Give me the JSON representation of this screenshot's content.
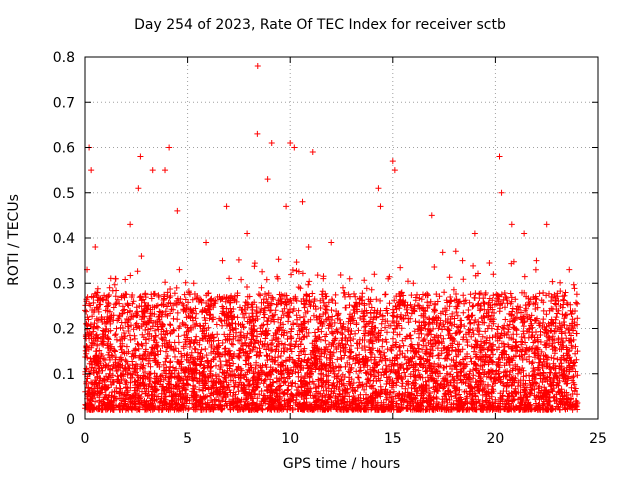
{
  "chart_data": {
    "type": "scatter",
    "title": "Day 254 of 2023, Rate Of TEC Index for receiver sctb",
    "xlabel": "GPS time / hours",
    "ylabel": "ROTI / TECUs",
    "xlim": [
      0,
      25
    ],
    "ylim": [
      0,
      0.8
    ],
    "xticks": [
      "0",
      "5",
      "10",
      "15",
      "20",
      "25"
    ],
    "yticks": [
      "0",
      "0.1",
      "0.2",
      "0.3",
      "0.4",
      "0.5",
      "0.6",
      "0.7",
      "0.8"
    ],
    "grid": true,
    "marker": "+",
    "color": "#ff0000",
    "series": [
      {
        "x": [
          0.0,
          0.1,
          0.2,
          0.3,
          0.35,
          0.5,
          0.6,
          0.7,
          0.8,
          1.0,
          1.2,
          1.4,
          1.5,
          1.7,
          1.9,
          2.0,
          2.2,
          2.4,
          2.6,
          2.7,
          2.75,
          2.8,
          3.0,
          3.3,
          3.4,
          3.6,
          3.9,
          4.1,
          4.2,
          4.5,
          4.6,
          4.8,
          5.0,
          5.3,
          5.6,
          5.9,
          6.2,
          6.4,
          6.7,
          6.9,
          7.0,
          7.3,
          7.6,
          7.9,
          8.1,
          8.4,
          8.42,
          8.6,
          8.8,
          8.9,
          9.1,
          9.2,
          9.4,
          9.6,
          9.8,
          10.0,
          10.2,
          10.25,
          10.4,
          10.6,
          10.9,
          11.1,
          11.4,
          11.7,
          12.0,
          12.3,
          12.6,
          12.9,
          13.2,
          13.5,
          13.8,
          14.1,
          14.3,
          14.4,
          14.7,
          15.0,
          15.1,
          15.4,
          15.7,
          16.0,
          16.3,
          16.6,
          16.9,
          17.2,
          17.5,
          17.8,
          18.1,
          18.4,
          18.7,
          19.0,
          19.3,
          19.6,
          19.9,
          20.2,
          20.3,
          20.5,
          20.8,
          21.1,
          21.4,
          21.7,
          22.0,
          22.3,
          22.5,
          22.8,
          23.1,
          23.4,
          23.6,
          23.8,
          24.0
        ],
        "y": [
          0.24,
          0.33,
          0.6,
          0.55,
          0.12,
          0.38,
          0.18,
          0.09,
          0.22,
          0.07,
          0.29,
          0.12,
          0.31,
          0.08,
          0.19,
          0.11,
          0.43,
          0.14,
          0.51,
          0.58,
          0.36,
          0.09,
          0.21,
          0.55,
          0.13,
          0.27,
          0.55,
          0.6,
          0.1,
          0.46,
          0.33,
          0.07,
          0.18,
          0.3,
          0.12,
          0.39,
          0.22,
          0.08,
          0.35,
          0.47,
          0.15,
          0.27,
          0.09,
          0.41,
          0.19,
          0.63,
          0.78,
          0.29,
          0.12,
          0.53,
          0.61,
          0.22,
          0.31,
          0.1,
          0.47,
          0.61,
          0.6,
          0.27,
          0.16,
          0.48,
          0.38,
          0.59,
          0.11,
          0.25,
          0.39,
          0.08,
          0.21,
          0.31,
          0.14,
          0.27,
          0.09,
          0.32,
          0.51,
          0.47,
          0.17,
          0.57,
          0.55,
          0.23,
          0.11,
          0.3,
          0.07,
          0.21,
          0.45,
          0.14,
          0.28,
          0.06,
          0.19,
          0.35,
          0.09,
          0.41,
          0.25,
          0.13,
          0.32,
          0.58,
          0.5,
          0.27,
          0.43,
          0.1,
          0.41,
          0.22,
          0.35,
          0.12,
          0.43,
          0.27,
          0.06,
          0.19,
          0.33,
          0.08,
          0.15
        ]
      }
    ]
  }
}
